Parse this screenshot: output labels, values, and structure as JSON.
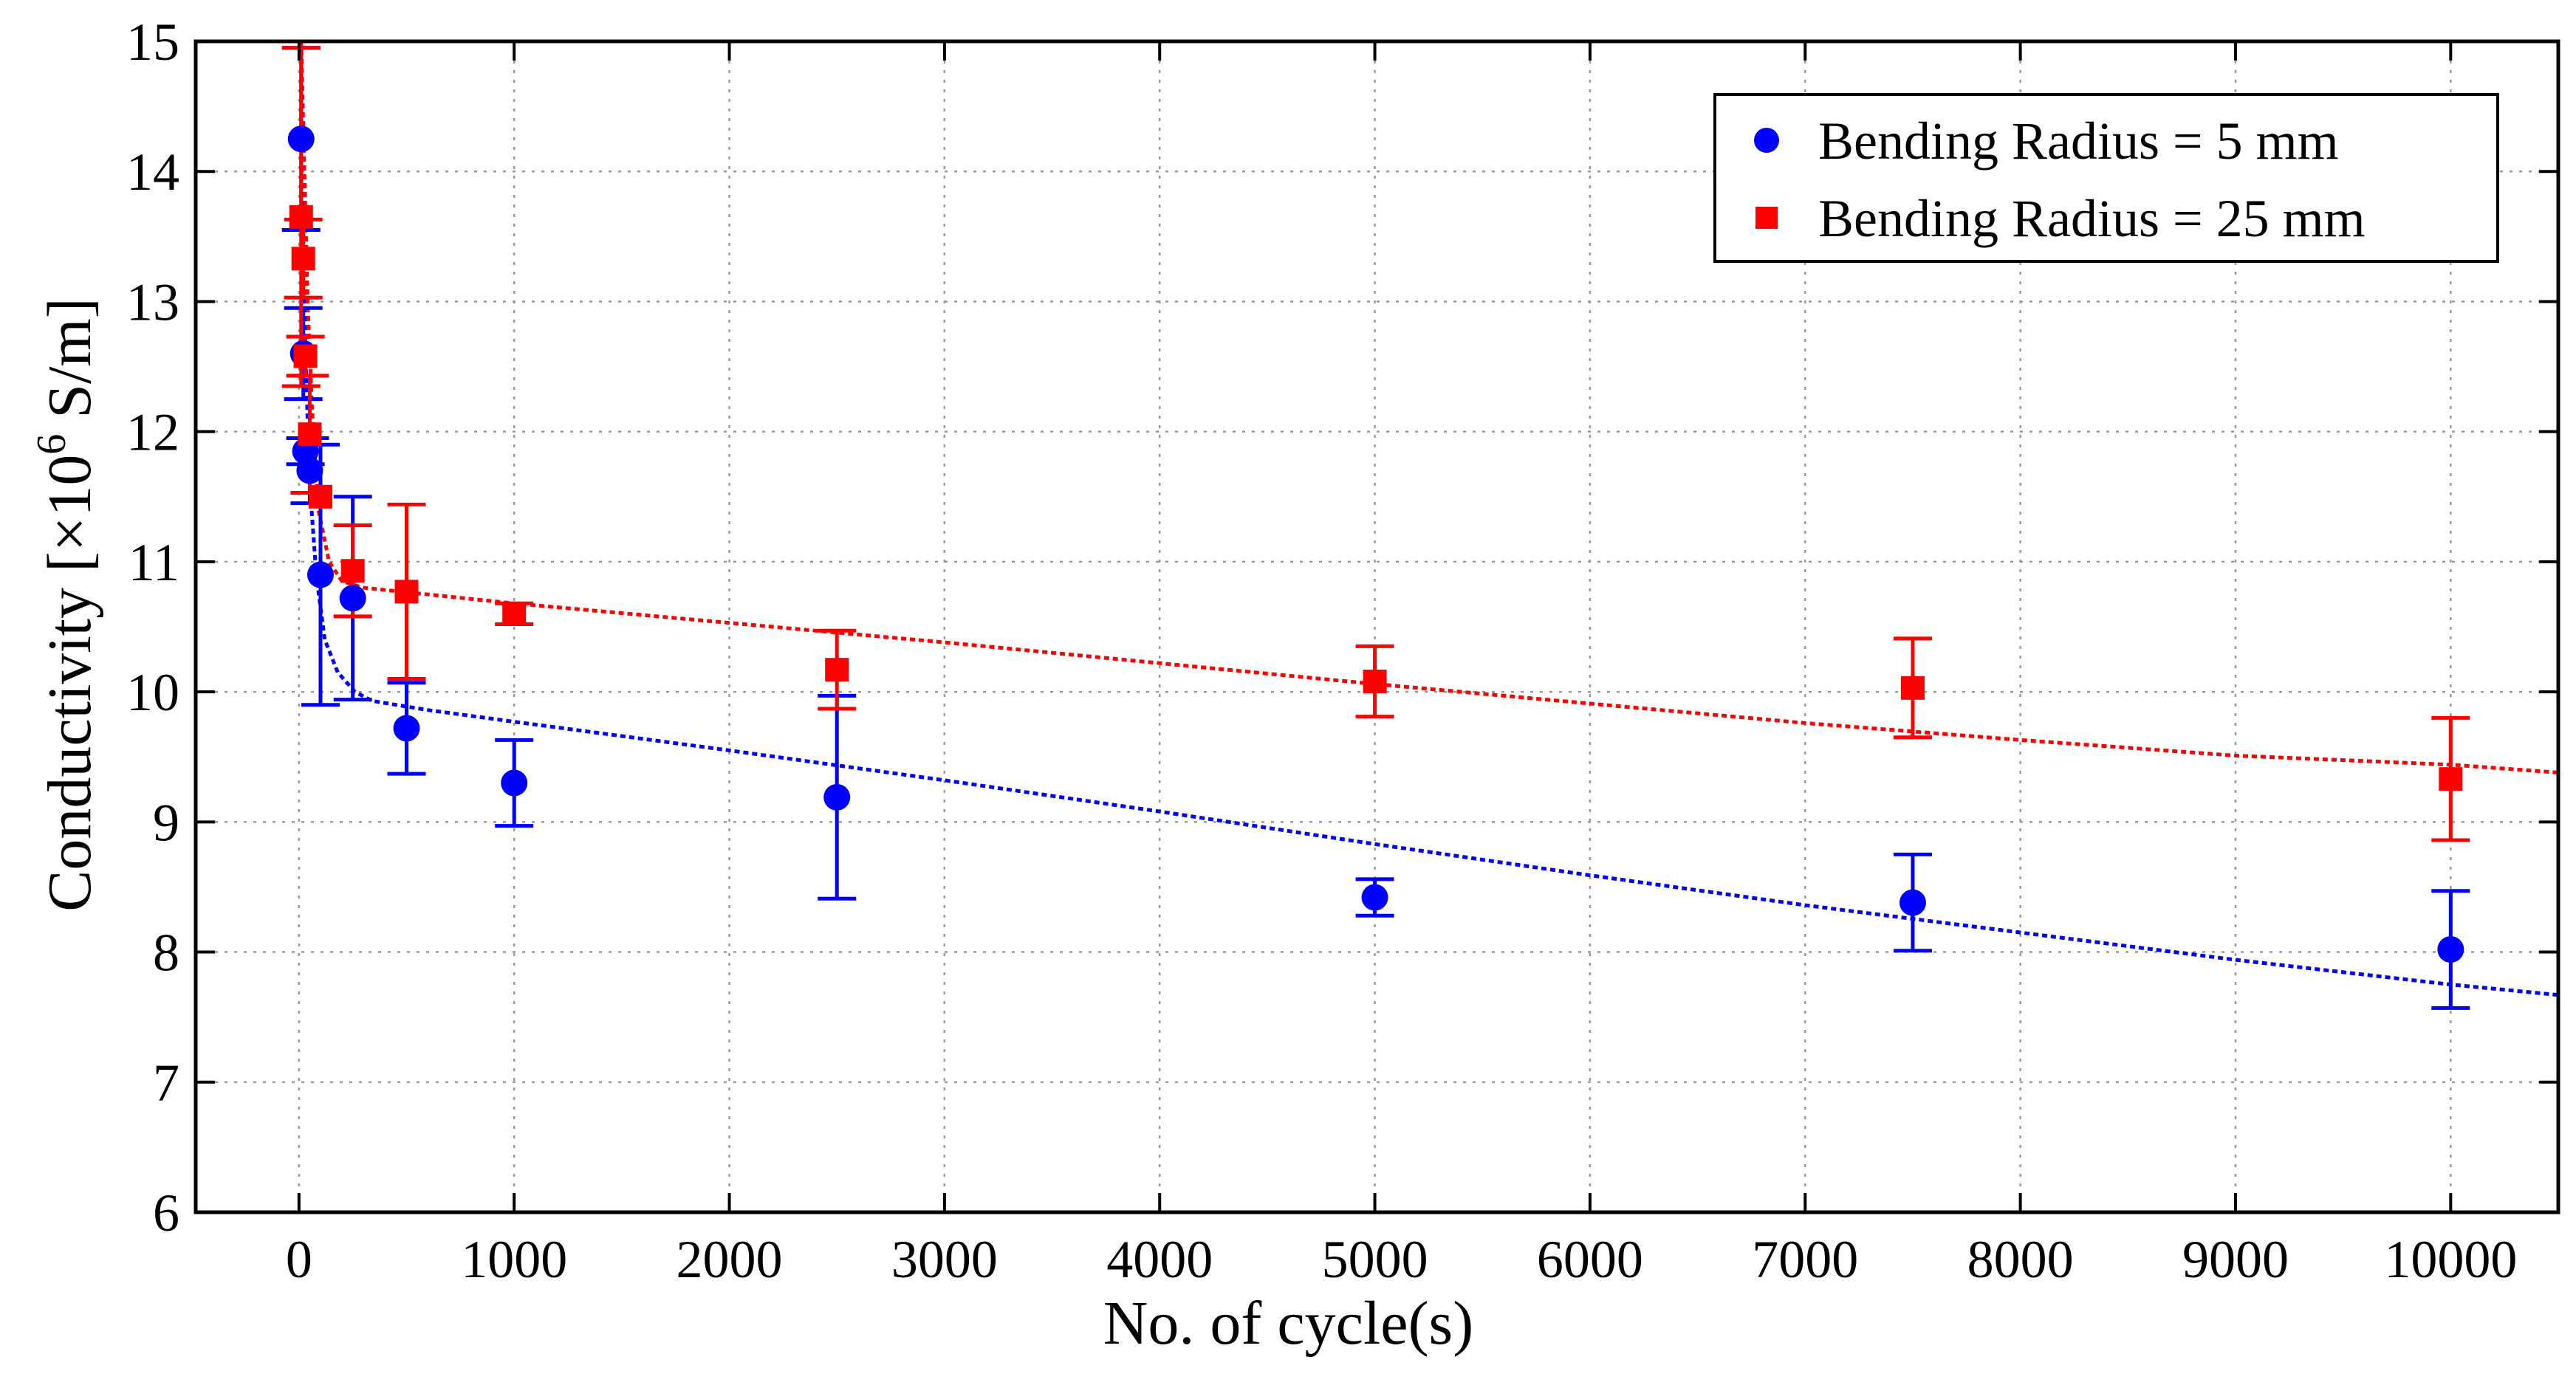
{
  "chart_data": {
    "type": "scatter",
    "title": "",
    "xlabel": "No. of cycle(s)",
    "ylabel": "Conductivity [×10^6 S/m]",
    "ylabel_parts": {
      "main": "Conductivity [×10",
      "exp": "6",
      "unit": " S/m]"
    },
    "xlim": [
      -480,
      10500
    ],
    "ylim": [
      6,
      15
    ],
    "x_ticks": [
      0,
      1000,
      2000,
      3000,
      4000,
      5000,
      6000,
      7000,
      8000,
      9000,
      10000
    ],
    "y_ticks": [
      6,
      7,
      8,
      9,
      10,
      11,
      12,
      13,
      14,
      15
    ],
    "grid": true,
    "legend_position": "top-right",
    "series": [
      {
        "name": "Bending Radius = 5 mm",
        "color": "#0000ff",
        "marker": "circle",
        "points": [
          {
            "x": 10,
            "y": 14.25,
            "err": 0.7
          },
          {
            "x": 20,
            "y": 12.6,
            "err": 0.35
          },
          {
            "x": 30,
            "y": 11.85,
            "err": 0.1
          },
          {
            "x": 50,
            "y": 11.7,
            "err": 0.25
          },
          {
            "x": 100,
            "y": 10.9,
            "err": 1.0
          },
          {
            "x": 250,
            "y": 10.72,
            "err": 0.78
          },
          {
            "x": 500,
            "y": 9.72,
            "err": 0.35
          },
          {
            "x": 1000,
            "y": 9.3,
            "err": 0.33
          },
          {
            "x": 2500,
            "y": 9.19,
            "err": 0.78
          },
          {
            "x": 5000,
            "y": 8.42,
            "err": 0.14
          },
          {
            "x": 7500,
            "y": 8.38,
            "err": 0.37
          },
          {
            "x": 10000,
            "y": 8.02,
            "err": 0.45
          }
        ],
        "trend": [
          [
            10,
            14.25
          ],
          [
            30,
            12.6
          ],
          [
            50,
            11.6
          ],
          [
            80,
            10.9
          ],
          [
            120,
            10.4
          ],
          [
            180,
            10.15
          ],
          [
            260,
            10.0
          ],
          [
            340,
            9.93
          ],
          [
            600,
            9.86
          ],
          [
            1000,
            9.77
          ],
          [
            2000,
            9.55
          ],
          [
            3000,
            9.32
          ],
          [
            4000,
            9.08
          ],
          [
            5000,
            8.83
          ],
          [
            6000,
            8.59
          ],
          [
            7000,
            8.36
          ],
          [
            8000,
            8.15
          ],
          [
            9000,
            7.94
          ],
          [
            10000,
            7.75
          ],
          [
            10500,
            7.67
          ]
        ]
      },
      {
        "name": "Bending Radius = 25 mm",
        "color": "#ff0000",
        "marker": "square",
        "points": [
          {
            "x": 10,
            "y": 13.65,
            "err": 1.3
          },
          {
            "x": 20,
            "y": 13.33,
            "err": 0.3
          },
          {
            "x": 30,
            "y": 12.58,
            "err": 0.15
          },
          {
            "x": 50,
            "y": 11.98,
            "err": 0.45
          },
          {
            "x": 100,
            "y": 11.5,
            "err": 0.0
          },
          {
            "x": 250,
            "y": 10.93,
            "err": 0.35
          },
          {
            "x": 500,
            "y": 10.77,
            "err": 0.67
          },
          {
            "x": 1000,
            "y": 10.6,
            "err": 0.08
          },
          {
            "x": 2500,
            "y": 10.17,
            "err": 0.3
          },
          {
            "x": 5000,
            "y": 10.08,
            "err": 0.27
          },
          {
            "x": 7500,
            "y": 10.03,
            "err": 0.38
          },
          {
            "x": 10000,
            "y": 9.33,
            "err": 0.47
          }
        ],
        "trend": [
          [
            10,
            15.0
          ],
          [
            25,
            14.0
          ],
          [
            40,
            13.0
          ],
          [
            60,
            12.2
          ],
          [
            90,
            11.4
          ],
          [
            140,
            11.0
          ],
          [
            200,
            10.85
          ],
          [
            300,
            10.8
          ],
          [
            1000,
            10.68
          ],
          [
            2000,
            10.53
          ],
          [
            3000,
            10.38
          ],
          [
            4000,
            10.22
          ],
          [
            5000,
            10.06
          ],
          [
            6000,
            9.91
          ],
          [
            7000,
            9.76
          ],
          [
            8000,
            9.63
          ],
          [
            9000,
            9.51
          ],
          [
            10000,
            9.44
          ],
          [
            10500,
            9.38
          ]
        ]
      }
    ]
  }
}
